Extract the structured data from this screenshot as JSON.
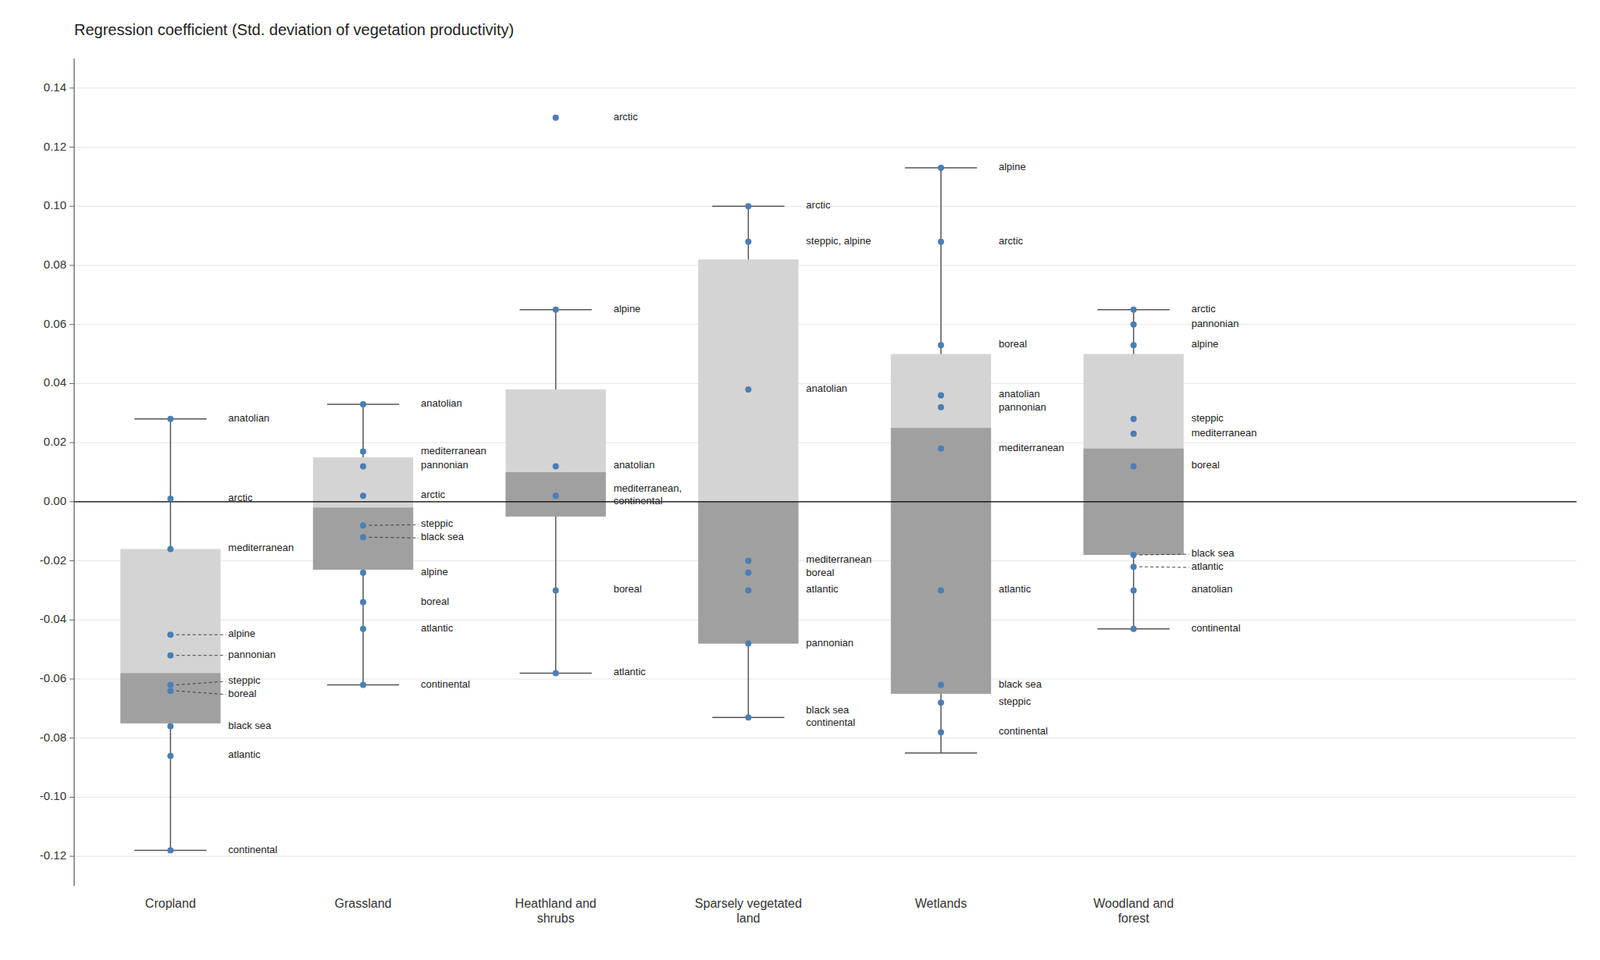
{
  "chart_data": {
    "type": "box",
    "title": "Regression coefficient (Std. deviation of vegetation productivity)",
    "ylim": [
      -0.13,
      0.15
    ],
    "yticks": [
      -0.12,
      {
        "value": -0.1,
        "label": "-0.10"
      },
      -0.08,
      -0.06,
      -0.04,
      -0.02,
      {
        "value": 0.0,
        "label": "0.00"
      },
      0.02,
      0.04,
      0.06,
      0.08,
      {
        "value": 0.1,
        "label": "0.10"
      },
      0.12,
      0.14
    ],
    "grid": true,
    "categories": [
      "Cropland",
      "Grassland",
      "Heathland and\nshrubs",
      "Sparsely vegetated\nland",
      "Wetlands",
      "Woodland and\nforest"
    ],
    "boxes": [
      {
        "q1": -0.075,
        "q3": -0.016,
        "median": -0.058,
        "whisker_low": -0.118,
        "whisker_high": 0.028,
        "points": [
          {
            "label": "anatolian",
            "value": 0.028
          },
          {
            "label": "arctic",
            "value": 0.001
          },
          {
            "label": "mediterranean",
            "value": -0.016
          },
          {
            "label": "alpine",
            "value": -0.045,
            "line_style": "dashed"
          },
          {
            "label": "pannonian",
            "value": -0.052,
            "line_style": "dashed"
          },
          {
            "label": "steppic",
            "value": -0.062,
            "line_style": "dashed"
          },
          {
            "label": "boreal",
            "value": -0.064,
            "line_style": "dashed"
          },
          {
            "label": "black sea",
            "value": -0.076
          },
          {
            "label": "atlantic",
            "value": -0.086
          },
          {
            "label": "continental",
            "value": -0.118
          }
        ]
      },
      {
        "q1": -0.023,
        "q3": 0.015,
        "median": -0.002,
        "whisker_low": -0.062,
        "whisker_high": 0.033,
        "points": [
          {
            "label": "anatolian",
            "value": 0.033
          },
          {
            "label": "mediterranean",
            "value": 0.017
          },
          {
            "label": "pannonian",
            "value": 0.012
          },
          {
            "label": "arctic",
            "value": 0.002
          },
          {
            "label": "steppic",
            "value": -0.008,
            "line_style": "dashed"
          },
          {
            "label": "black sea",
            "value": -0.012,
            "line_style": "dashed"
          },
          {
            "label": "alpine",
            "value": -0.024
          },
          {
            "label": "boreal",
            "value": -0.034
          },
          {
            "label": "atlantic",
            "value": -0.043
          },
          {
            "label": "continental",
            "value": -0.062
          }
        ]
      },
      {
        "q1": -0.005,
        "q3": 0.038,
        "median": 0.01,
        "whisker_low": -0.058,
        "whisker_high": 0.065,
        "points": [
          {
            "label": "arctic",
            "value": 0.13
          },
          {
            "label": "alpine",
            "value": 0.065
          },
          {
            "label": "anatolian",
            "value": 0.012
          },
          {
            "label": "mediterranean,\ncontinental",
            "value": 0.002
          },
          {
            "label": "boreal",
            "value": -0.03
          },
          {
            "label": "atlantic",
            "value": -0.058
          }
        ]
      },
      {
        "q1": -0.048,
        "q3": 0.082,
        "median": 0.0,
        "whisker_low": -0.073,
        "whisker_high": 0.1,
        "points": [
          {
            "label": "arctic",
            "value": 0.1
          },
          {
            "label": "steppic, alpine",
            "value": 0.088
          },
          {
            "label": "anatolian",
            "value": 0.038
          },
          {
            "label": "mediterranean",
            "value": -0.02
          },
          {
            "label": "boreal",
            "value": -0.024
          },
          {
            "label": "atlantic",
            "value": -0.03
          },
          {
            "label": "pannonian",
            "value": -0.048
          },
          {
            "label": "black sea\ncontinental",
            "value": -0.073
          }
        ]
      },
      {
        "q1": -0.065,
        "q3": 0.05,
        "median": 0.025,
        "whisker_low": -0.085,
        "whisker_high": 0.113,
        "points": [
          {
            "label": "alpine",
            "value": 0.113
          },
          {
            "label": "arctic",
            "value": 0.088
          },
          {
            "label": "boreal",
            "value": 0.053
          },
          {
            "label": "anatolian",
            "value": 0.036
          },
          {
            "label": "pannonian",
            "value": 0.032
          },
          {
            "label": "mediterranean",
            "value": 0.018
          },
          {
            "label": "atlantic",
            "value": -0.03
          },
          {
            "label": "black sea",
            "value": -0.062
          },
          {
            "label": "steppic",
            "value": -0.068
          },
          {
            "label": "continental",
            "value": -0.078
          }
        ]
      },
      {
        "q1": -0.018,
        "q3": 0.05,
        "median": 0.018,
        "whisker_low": -0.043,
        "whisker_high": 0.065,
        "points": [
          {
            "label": "arctic",
            "value": 0.065
          },
          {
            "label": "pannonian",
            "value": 0.06
          },
          {
            "label": "alpine",
            "value": 0.053
          },
          {
            "label": "steppic",
            "value": 0.028
          },
          {
            "label": "mediterranean",
            "value": 0.023
          },
          {
            "label": "boreal",
            "value": 0.012
          },
          {
            "label": "black sea",
            "value": -0.018,
            "line_style": "dashed"
          },
          {
            "label": "atlantic",
            "value": -0.022,
            "line_style": "dashed"
          },
          {
            "label": "anatolian",
            "value": -0.03
          },
          {
            "label": "continental",
            "value": -0.043
          }
        ]
      }
    ]
  }
}
